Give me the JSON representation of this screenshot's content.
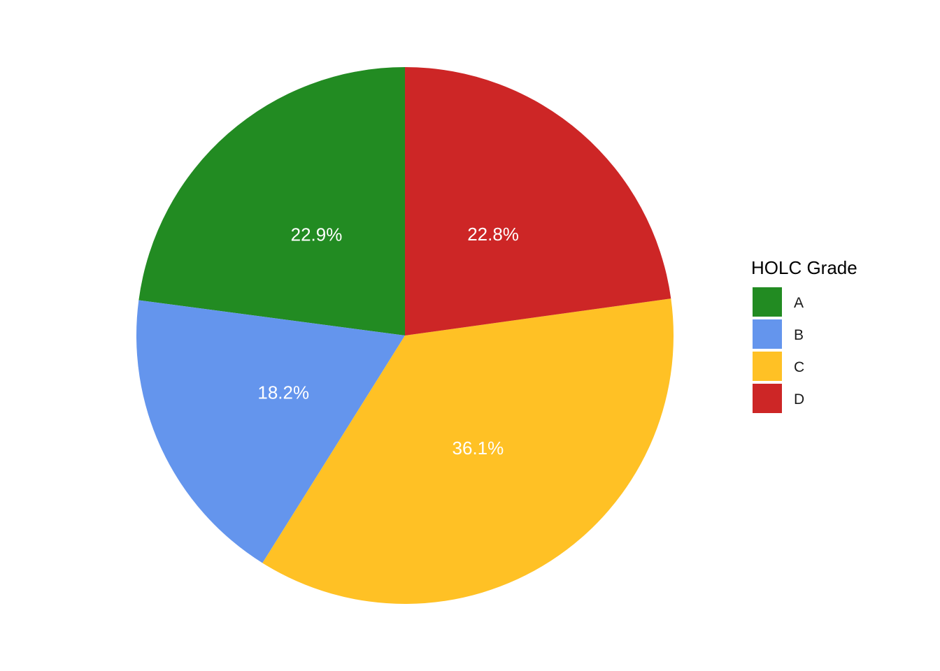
{
  "chart_data": {
    "type": "pie",
    "categories": [
      "A",
      "B",
      "C",
      "D"
    ],
    "values": [
      22.9,
      18.2,
      36.1,
      22.8
    ],
    "labels": [
      "22.9%",
      "18.2%",
      "36.1%",
      "22.8%"
    ],
    "colors": [
      "#228B22",
      "#6495ED",
      "#FFC125",
      "#CD2626"
    ],
    "legend": {
      "title": "HOLC Grade",
      "position": "right"
    },
    "direction": "counterclockwise-from-top"
  }
}
